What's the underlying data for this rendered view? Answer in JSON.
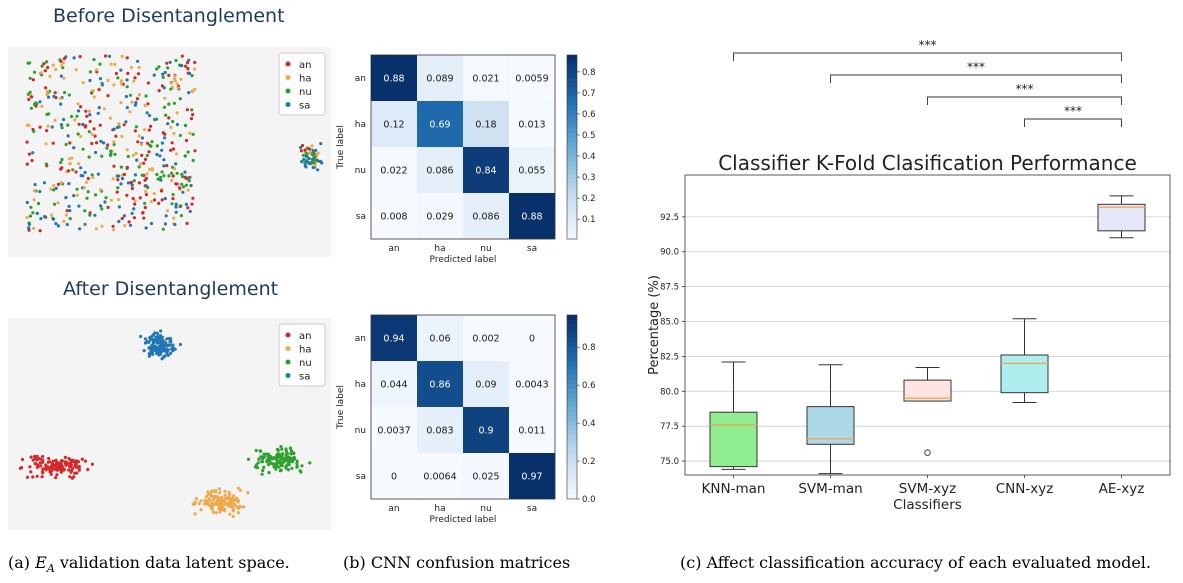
{
  "titles": {
    "before": "Before Disentanglement",
    "after": "After Disentanglement"
  },
  "captions": {
    "a_prefix": "(a)",
    "a_symbol": "E",
    "a_sub": "A",
    "a_rest": "validation data latent space.",
    "b": "(b) CNN confusion matrices",
    "c": "(c) Affect classification accuracy of each evaluated model."
  },
  "colors": {
    "an": "#d62728",
    "ha": "#f0a94a",
    "nu": "#2ca02c",
    "sa": "#1f77b4"
  },
  "chart_data": [
    {
      "type": "scatter",
      "id": "latent-before",
      "title": "Before Disentanglement",
      "legend": [
        "an",
        "ha",
        "nu",
        "sa"
      ],
      "legend_position": "top-right",
      "clusters": [
        {
          "label": "mixed",
          "classes": [
            "an",
            "ha",
            "nu",
            "sa"
          ],
          "cx": 0.32,
          "cy": 0.46,
          "rx": 0.29,
          "ry": 0.44
        },
        {
          "label": "sa-group",
          "classes": [
            "sa",
            "an",
            "ha",
            "nu"
          ],
          "cx": 0.94,
          "cy": 0.52,
          "rx": 0.05,
          "ry": 0.09
        }
      ]
    },
    {
      "type": "heatmap",
      "id": "cm-before",
      "xlabel": "Predicted label",
      "ylabel": "True label",
      "labels": [
        "an",
        "ha",
        "nu",
        "sa"
      ],
      "matrix_text": [
        [
          "0.88",
          "0.089",
          "0.021",
          "0.0059"
        ],
        [
          "0.12",
          "0.69",
          "0.18",
          "0.013"
        ],
        [
          "0.022",
          "0.086",
          "0.84",
          "0.055"
        ],
        [
          "0.008",
          "0.029",
          "0.086",
          "0.88"
        ]
      ],
      "colorbar_ticks": [
        "0.8",
        "0.7",
        "0.6",
        "0.5",
        "0.4",
        "0.3",
        "0.2",
        "0.1"
      ],
      "colorbar_range": [
        0.0059,
        0.88
      ]
    },
    {
      "type": "scatter",
      "id": "latent-after",
      "title": "After Disentanglement",
      "legend": [
        "an",
        "ha",
        "nu",
        "sa"
      ],
      "legend_position": "top-right",
      "clusters": [
        {
          "label": "sa",
          "classes": [
            "sa"
          ],
          "cx": 0.47,
          "cy": 0.13,
          "rx": 0.07,
          "ry": 0.08
        },
        {
          "label": "an",
          "classes": [
            "an"
          ],
          "cx": 0.15,
          "cy": 0.7,
          "rx": 0.13,
          "ry": 0.07
        },
        {
          "label": "ha",
          "classes": [
            "ha"
          ],
          "cx": 0.66,
          "cy": 0.87,
          "rx": 0.11,
          "ry": 0.08
        },
        {
          "label": "nu",
          "classes": [
            "nu"
          ],
          "cx": 0.84,
          "cy": 0.67,
          "rx": 0.11,
          "ry": 0.08
        }
      ]
    },
    {
      "type": "heatmap",
      "id": "cm-after",
      "xlabel": "Predicted label",
      "ylabel": "True label",
      "labels": [
        "an",
        "ha",
        "nu",
        "sa"
      ],
      "matrix_text": [
        [
          "0.94",
          "0.06",
          "0.002",
          "0"
        ],
        [
          "0.044",
          "0.86",
          "0.09",
          "0.0043"
        ],
        [
          "0.0037",
          "0.083",
          "0.9",
          "0.011"
        ],
        [
          "0",
          "0.0064",
          "0.025",
          "0.97"
        ]
      ],
      "colorbar_ticks": [
        "0.8",
        "0.6",
        "0.4",
        "0.2",
        "0.0"
      ],
      "colorbar_range": [
        0.0,
        0.97
      ]
    },
    {
      "type": "box",
      "id": "kfold-boxplot",
      "title": "Classifier K-Fold Clasification Performance",
      "xlabel": "Classifiers",
      "ylabel": "Percentage (%)",
      "ylim": [
        74.0,
        95.5
      ],
      "yticks": [
        "75.0",
        "77.5",
        "80.0",
        "82.5",
        "85.0",
        "87.5",
        "90.0",
        "92.5"
      ],
      "grid": "horizontal",
      "categories": [
        "KNN-man",
        "SVM-man",
        "SVM-xyz",
        "CNN-xyz",
        "AE-xyz"
      ],
      "boxes": [
        {
          "name": "KNN-man",
          "whislo": 74.4,
          "q1": 74.6,
          "med": 77.6,
          "q3": 78.5,
          "whishi": 82.1,
          "fliers": [],
          "color": "#90ee90"
        },
        {
          "name": "SVM-man",
          "whislo": 74.1,
          "q1": 76.2,
          "med": 76.6,
          "q3": 78.9,
          "whishi": 81.9,
          "fliers": [],
          "color": "#add8e6"
        },
        {
          "name": "SVM-xyz",
          "whislo": 79.3,
          "q1": 79.3,
          "med": 79.5,
          "q3": 80.8,
          "whishi": 81.7,
          "fliers": [
            75.6
          ],
          "color": "#ffe4e1"
        },
        {
          "name": "CNN-xyz",
          "whislo": 79.2,
          "q1": 79.9,
          "med": 82.0,
          "q3": 82.6,
          "whishi": 85.2,
          "fliers": [],
          "color": "#afeeee"
        },
        {
          "name": "AE-xyz",
          "whislo": 91.0,
          "q1": 91.5,
          "med": 93.2,
          "q3": 93.4,
          "whishi": 94.0,
          "fliers": [],
          "color": "#e6e6fa"
        }
      ],
      "significance": [
        {
          "from": "KNN-man",
          "to": "AE-xyz",
          "label": "***"
        },
        {
          "from": "SVM-man",
          "to": "AE-xyz",
          "label": "***"
        },
        {
          "from": "SVM-xyz",
          "to": "AE-xyz",
          "label": "***"
        },
        {
          "from": "CNN-xyz",
          "to": "AE-xyz",
          "label": "***"
        }
      ]
    }
  ]
}
